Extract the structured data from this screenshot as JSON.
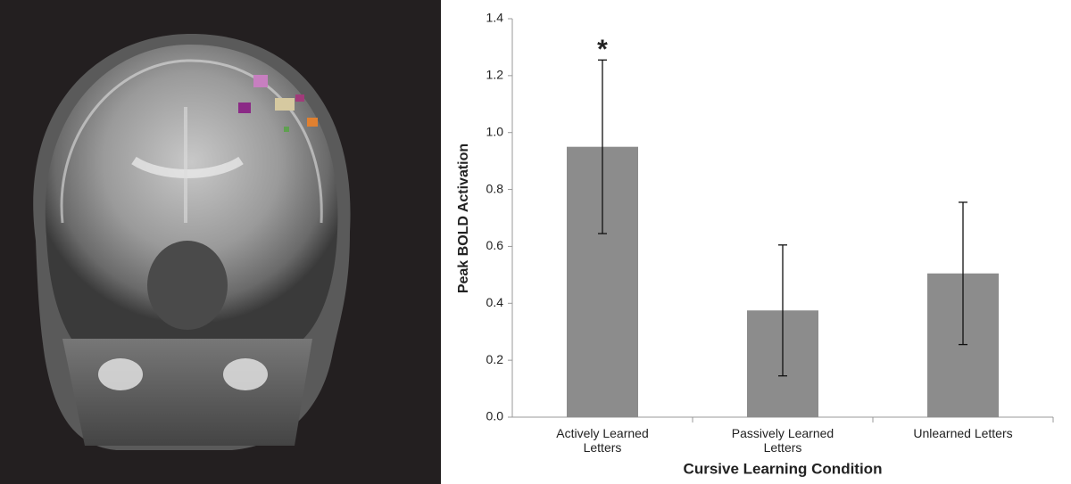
{
  "chart_data": {
    "type": "bar",
    "ylabel": "Peak BOLD Activation",
    "xlabel": "Cursive Learning Condition",
    "categories": [
      "Actively Learned Letters",
      "Passively Learned Letters",
      "Unlearned Letters"
    ],
    "values": [
      0.95,
      0.375,
      0.505
    ],
    "errors": [
      0.305,
      0.23,
      0.25
    ],
    "annotation": "*",
    "color": "#8c8c8c",
    "ylim": [
      0,
      1.4
    ],
    "yticks": [
      {
        "value": 0,
        "label": "0.0"
      },
      0.2,
      0.4,
      0.6,
      0.8,
      {
        "value": 1,
        "label": "1.0"
      },
      1.2,
      1.4
    ],
    "grid": false
  }
}
